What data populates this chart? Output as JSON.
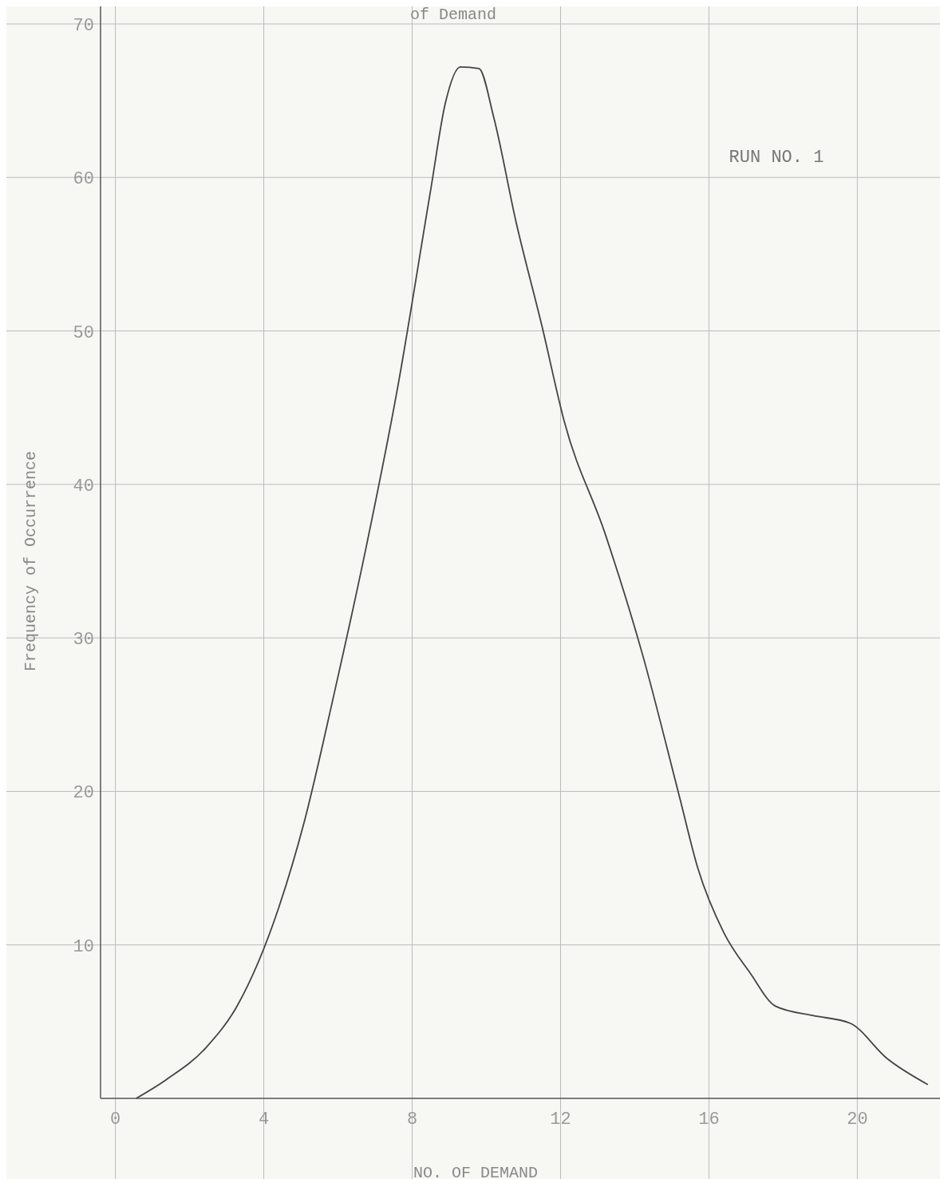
{
  "chart_data": {
    "type": "line",
    "title": "of Demand",
    "xlabel": "NO. OF DEMAND",
    "ylabel": "Frequency of Occurrence",
    "annotations": [
      "RUN NO. 1"
    ],
    "x": [
      0.56,
      1.36,
      2.44,
      3.3,
      4.4,
      5.1,
      5.9,
      6.75,
      7.6,
      8.5,
      8.9,
      9.3,
      9.8,
      10.2,
      10.8,
      11.5,
      12.1,
      13.2,
      14.2,
      15.2,
      15.7,
      16.4,
      17.1,
      17.8,
      18.8,
      19.8,
      20.8,
      21.9
    ],
    "series": [
      {
        "color": "#444444",
        "values": [
          0,
          1.2,
          3.3,
          6.1,
          12.4,
          18.1,
          26.4,
          35.8,
          46.2,
          59.2,
          64.9,
          67.2,
          67.1,
          63.9,
          57.1,
          50.3,
          44.1,
          36.8,
          29.0,
          19.7,
          15.0,
          10.8,
          8.2,
          6.0,
          5.4,
          4.9,
          2.6,
          0.9
        ]
      }
    ],
    "xlim": [
      -0.4,
      22.4
    ],
    "ylim": [
      0,
      70
    ],
    "xticks": [
      0,
      4,
      8,
      12,
      16,
      20
    ],
    "yticks": [
      10,
      20,
      30,
      40,
      50,
      60,
      70
    ],
    "grid": true,
    "marker": "none",
    "line_style": "solid"
  }
}
